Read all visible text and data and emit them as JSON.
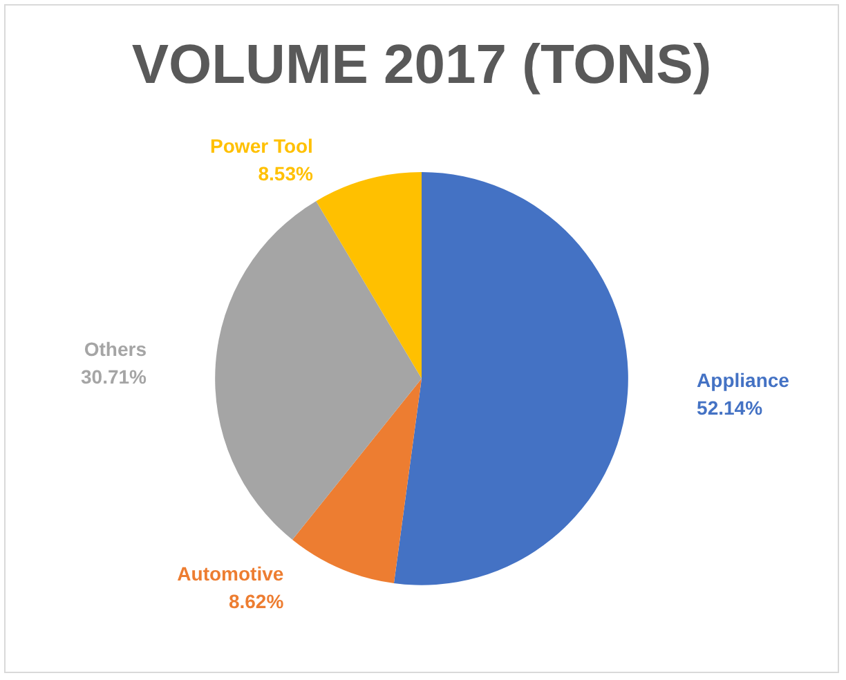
{
  "chart_data": {
    "type": "pie",
    "title": "VOLUME 2017 (TONS)",
    "categories": [
      "Appliance",
      "Automotive",
      "Others",
      "Power Tool"
    ],
    "values": [
      52.14,
      8.62,
      30.71,
      8.53
    ],
    "value_labels": [
      "52.14%",
      "8.62%",
      "30.71%",
      "8.53%"
    ],
    "colors": [
      "#4472c4",
      "#ed7d31",
      "#a5a5a5",
      "#ffc000"
    ],
    "legend": false
  }
}
